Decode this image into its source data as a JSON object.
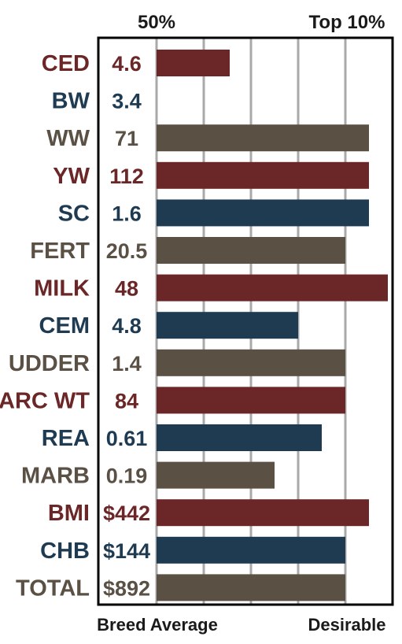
{
  "chart_data": {
    "type": "bar",
    "orientation": "horizontal",
    "header_left": "50%",
    "header_right": "Top 10%",
    "footer_left": "Breed Average",
    "footer_right": "Desirable",
    "grid": true,
    "xlim": [
      0,
      100
    ],
    "categories": [
      "CED",
      "BW",
      "WW",
      "YW",
      "SC",
      "FERT",
      "MILK",
      "CEM",
      "UDDER",
      "CARC WT",
      "REA",
      "MARB",
      "BMI",
      "CHB",
      "TOTAL"
    ],
    "epd_values": [
      "4.6",
      "3.4",
      "71",
      "112",
      "1.6",
      "20.5",
      "48",
      "4.8",
      "1.4",
      "84",
      "0.61",
      "0.19",
      "$442",
      "$144",
      "$892"
    ],
    "values": [
      31,
      0,
      90,
      90,
      90,
      80,
      98,
      60,
      80,
      80,
      70,
      50,
      90,
      80,
      80
    ],
    "color_group": [
      "red",
      "blue",
      "gray",
      "red",
      "blue",
      "gray",
      "red",
      "blue",
      "gray",
      "red",
      "blue",
      "gray",
      "red",
      "blue",
      "gray"
    ]
  },
  "colors": {
    "red": "#6b2727",
    "blue": "#1f3b52",
    "gray": "#5a5044",
    "gridline": "#a9a9a9",
    "frame": "#000000"
  }
}
